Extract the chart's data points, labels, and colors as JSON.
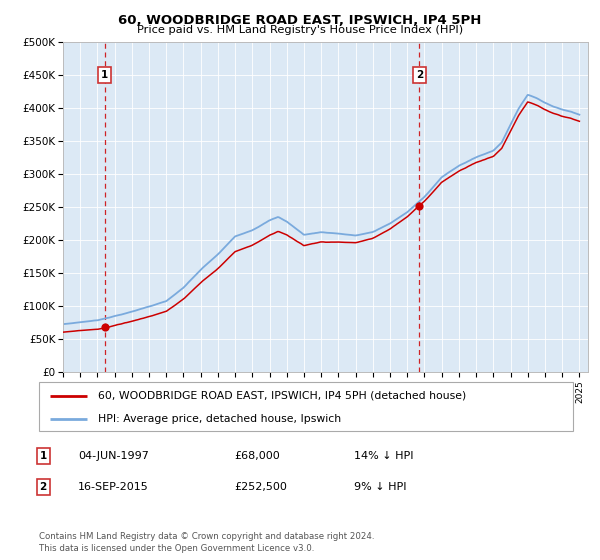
{
  "title": "60, WOODBRIDGE ROAD EAST, IPSWICH, IP4 5PH",
  "subtitle": "Price paid vs. HM Land Registry's House Price Index (HPI)",
  "legend_line1": "60, WOODBRIDGE ROAD EAST, IPSWICH, IP4 5PH (detached house)",
  "legend_line2": "HPI: Average price, detached house, Ipswich",
  "annotation1_label": "1",
  "annotation1_date": "04-JUN-1997",
  "annotation1_price": "£68,000",
  "annotation1_hpi": "14% ↓ HPI",
  "annotation1_year": 1997.43,
  "annotation1_value": 68000,
  "annotation2_label": "2",
  "annotation2_date": "16-SEP-2015",
  "annotation2_price": "£252,500",
  "annotation2_hpi": "9% ↓ HPI",
  "annotation2_year": 2015.71,
  "annotation2_value": 252500,
  "footer": "Contains HM Land Registry data © Crown copyright and database right 2024.\nThis data is licensed under the Open Government Licence v3.0.",
  "ylim": [
    0,
    500000
  ],
  "ytick_vals": [
    0,
    50000,
    100000,
    150000,
    200000,
    250000,
    300000,
    350000,
    400000,
    450000,
    500000
  ],
  "ytick_labels": [
    "£0",
    "£50K",
    "£100K",
    "£150K",
    "£200K",
    "£250K",
    "£300K",
    "£350K",
    "£400K",
    "£450K",
    "£500K"
  ],
  "xmin": 1995.0,
  "xmax": 2025.5,
  "chart_bg": "#dce9f5",
  "fig_bg": "#ffffff",
  "red_line_color": "#cc0000",
  "blue_line_color": "#7aaadd",
  "point_color": "#cc0000",
  "dashed_line_color": "#cc0000",
  "box_edgecolor": "#cc3333",
  "grid_color": "#ffffff",
  "spine_color": "#bbbbbb"
}
